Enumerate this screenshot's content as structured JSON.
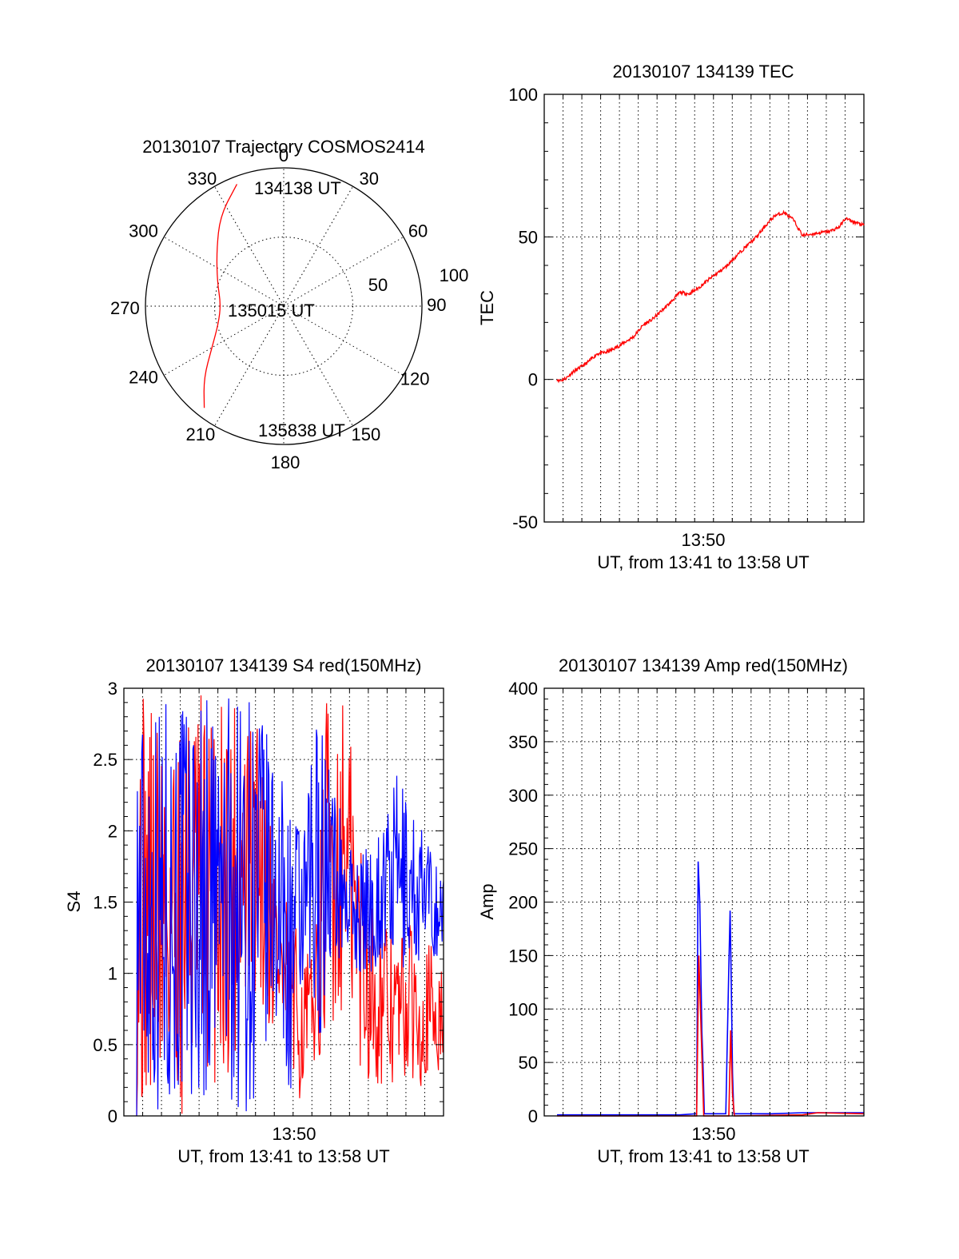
{
  "colors": {
    "red": "#ff0000",
    "blue": "#0000ff",
    "axis": "#000000"
  },
  "chart_data": [
    {
      "type": "polar",
      "title": "20130107 Trajectory COSMOS2414",
      "angle_labels": [
        "0",
        "30",
        "60",
        "90",
        "120",
        "150",
        "180",
        "210",
        "240",
        "270",
        "300",
        "330"
      ],
      "radius_labels": [
        "50",
        "100"
      ],
      "rlim": [
        0,
        100
      ],
      "grid": true,
      "annotations": [
        "134138 UT",
        "135015 UT",
        "135838 UT"
      ],
      "series": [
        {
          "color": "red",
          "points": [
            {
              "az": 339,
              "el": 5
            },
            {
              "az": 325,
              "el": 18
            },
            {
              "az": 310,
              "el": 33
            },
            {
              "az": 290,
              "el": 44
            },
            {
              "az": 272,
              "el": 49
            },
            {
              "az": 255,
              "el": 46
            },
            {
              "az": 240,
              "el": 36
            },
            {
              "az": 228,
              "el": 20
            },
            {
              "az": 218,
              "el": 6
            }
          ]
        }
      ]
    },
    {
      "type": "line",
      "title": "20130107 134139 TEC",
      "ylabel": "TEC",
      "xlabel": "UT, from 13:41 to 13:58 UT",
      "xtick_label": "13:50",
      "yticks": [
        "100",
        "50",
        "0",
        "-50"
      ],
      "ylim": [
        -50,
        100
      ],
      "grid": true,
      "series": [
        {
          "color": "red",
          "points": [
            [
              0.0,
              0
            ],
            [
              0.01,
              -0.5
            ],
            [
              0.03,
              0.5
            ],
            [
              0.05,
              2.5
            ],
            [
              0.08,
              4.5
            ],
            [
              0.1,
              6
            ],
            [
              0.13,
              9
            ],
            [
              0.16,
              9.5
            ],
            [
              0.19,
              11
            ],
            [
              0.22,
              13
            ],
            [
              0.25,
              15
            ],
            [
              0.28,
              19
            ],
            [
              0.31,
              21
            ],
            [
              0.34,
              24
            ],
            [
              0.37,
              27
            ],
            [
              0.4,
              30.5
            ],
            [
              0.43,
              30
            ],
            [
              0.46,
              32
            ],
            [
              0.5,
              35.5
            ],
            [
              0.55,
              39.5
            ],
            [
              0.6,
              45
            ],
            [
              0.65,
              50
            ],
            [
              0.68,
              54
            ],
            [
              0.71,
              57.5
            ],
            [
              0.74,
              58.5
            ],
            [
              0.77,
              56
            ],
            [
              0.8,
              50.5
            ],
            [
              0.83,
              51
            ],
            [
              0.86,
              51.5
            ],
            [
              0.89,
              52
            ],
            [
              0.92,
              53.5
            ],
            [
              0.94,
              56.5
            ],
            [
              0.96,
              55.5
            ],
            [
              1.0,
              54
            ]
          ]
        }
      ]
    },
    {
      "type": "line",
      "title": "20130107 134139 S4 red(150MHz)",
      "ylabel": "S4",
      "xlabel": "UT, from 13:41 to 13:58 UT",
      "xtick_label": "13:50",
      "yticks": [
        "3",
        "2.5",
        "2",
        "1.5",
        "1",
        "0.5",
        "0"
      ],
      "ylim": [
        0,
        3
      ],
      "grid": true,
      "series": [
        {
          "name": "red",
          "color": "red",
          "envelope": [
            [
              0.0,
              0.0,
              3.0
            ],
            [
              0.1,
              0.0,
              3.0
            ],
            [
              0.2,
              0.0,
              3.0
            ],
            [
              0.3,
              0.3,
              3.0
            ],
            [
              0.4,
              0.8,
              2.8
            ],
            [
              0.45,
              0.5,
              2.0
            ],
            [
              0.5,
              0.1,
              1.4
            ],
            [
              0.55,
              0.1,
              1.2
            ],
            [
              0.58,
              0.4,
              1.1
            ],
            [
              0.62,
              0.4,
              3.0
            ],
            [
              0.68,
              0.8,
              3.0
            ],
            [
              0.72,
              0.3,
              2.2
            ],
            [
              0.78,
              0.2,
              1.4
            ],
            [
              0.85,
              0.2,
              1.3
            ],
            [
              0.92,
              0.2,
              1.4
            ],
            [
              1.0,
              0.3,
              1.0
            ]
          ]
        },
        {
          "name": "blue",
          "color": "blue",
          "envelope": [
            [
              0.0,
              0.0,
              3.0
            ],
            [
              0.1,
              0.0,
              3.0
            ],
            [
              0.2,
              0.0,
              3.0
            ],
            [
              0.3,
              0.0,
              3.0
            ],
            [
              0.4,
              0.0,
              3.0
            ],
            [
              0.45,
              0.6,
              2.5
            ],
            [
              0.5,
              0.1,
              2.2
            ],
            [
              0.55,
              0.9,
              2.0
            ],
            [
              0.58,
              0.1,
              3.0
            ],
            [
              0.62,
              1.0,
              2.6
            ],
            [
              0.68,
              1.1,
              2.0
            ],
            [
              0.72,
              1.0,
              1.8
            ],
            [
              0.78,
              1.0,
              2.0
            ],
            [
              0.85,
              1.0,
              2.4
            ],
            [
              0.92,
              1.0,
              2.1
            ],
            [
              1.0,
              1.1,
              1.7
            ]
          ]
        }
      ]
    },
    {
      "type": "line",
      "title": "20130107 134139 Amp red(150MHz)",
      "ylabel": "Amp",
      "xlabel": "UT, from 13:41 to 13:58 UT",
      "xtick_label": "13:50",
      "yticks": [
        "400",
        "350",
        "300",
        "250",
        "200",
        "150",
        "100",
        "50",
        "0"
      ],
      "ylim": [
        0,
        400
      ],
      "grid": true,
      "series": [
        {
          "name": "blue",
          "color": "blue",
          "points": [
            [
              0.0,
              1
            ],
            [
              0.4,
              1
            ],
            [
              0.455,
              2
            ],
            [
              0.46,
              238
            ],
            [
              0.465,
              200
            ],
            [
              0.468,
              150
            ],
            [
              0.472,
              80
            ],
            [
              0.476,
              45
            ],
            [
              0.48,
              2
            ],
            [
              0.55,
              2
            ],
            [
              0.56,
              140
            ],
            [
              0.564,
              192
            ],
            [
              0.568,
              120
            ],
            [
              0.572,
              40
            ],
            [
              0.576,
              2
            ],
            [
              0.7,
              2
            ],
            [
              0.8,
              3
            ],
            [
              1.0,
              3
            ]
          ]
        },
        {
          "name": "red",
          "color": "red",
          "points": [
            [
              0.0,
              0
            ],
            [
              0.455,
              0
            ],
            [
              0.462,
              150
            ],
            [
              0.47,
              75
            ],
            [
              0.478,
              0
            ],
            [
              0.56,
              0
            ],
            [
              0.566,
              80
            ],
            [
              0.572,
              20
            ],
            [
              0.578,
              0
            ],
            [
              0.8,
              1
            ],
            [
              0.85,
              3
            ],
            [
              1.0,
              2
            ]
          ]
        }
      ]
    }
  ]
}
